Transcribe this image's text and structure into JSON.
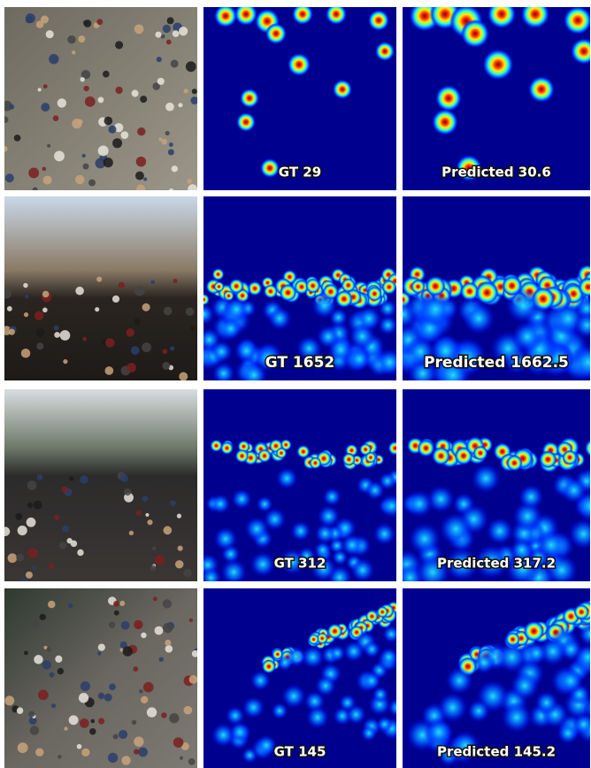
{
  "rows": [
    {
      "gt": "GT 29",
      "predicted": "Predicted 30.6"
    },
    {
      "gt": "GT 1652",
      "predicted": "Predicted 1662.5"
    },
    {
      "gt": "GT 312",
      "predicted": "Predicted 317.2"
    },
    {
      "gt": "GT 145",
      "predicted": "Predicted 145.2"
    }
  ]
}
